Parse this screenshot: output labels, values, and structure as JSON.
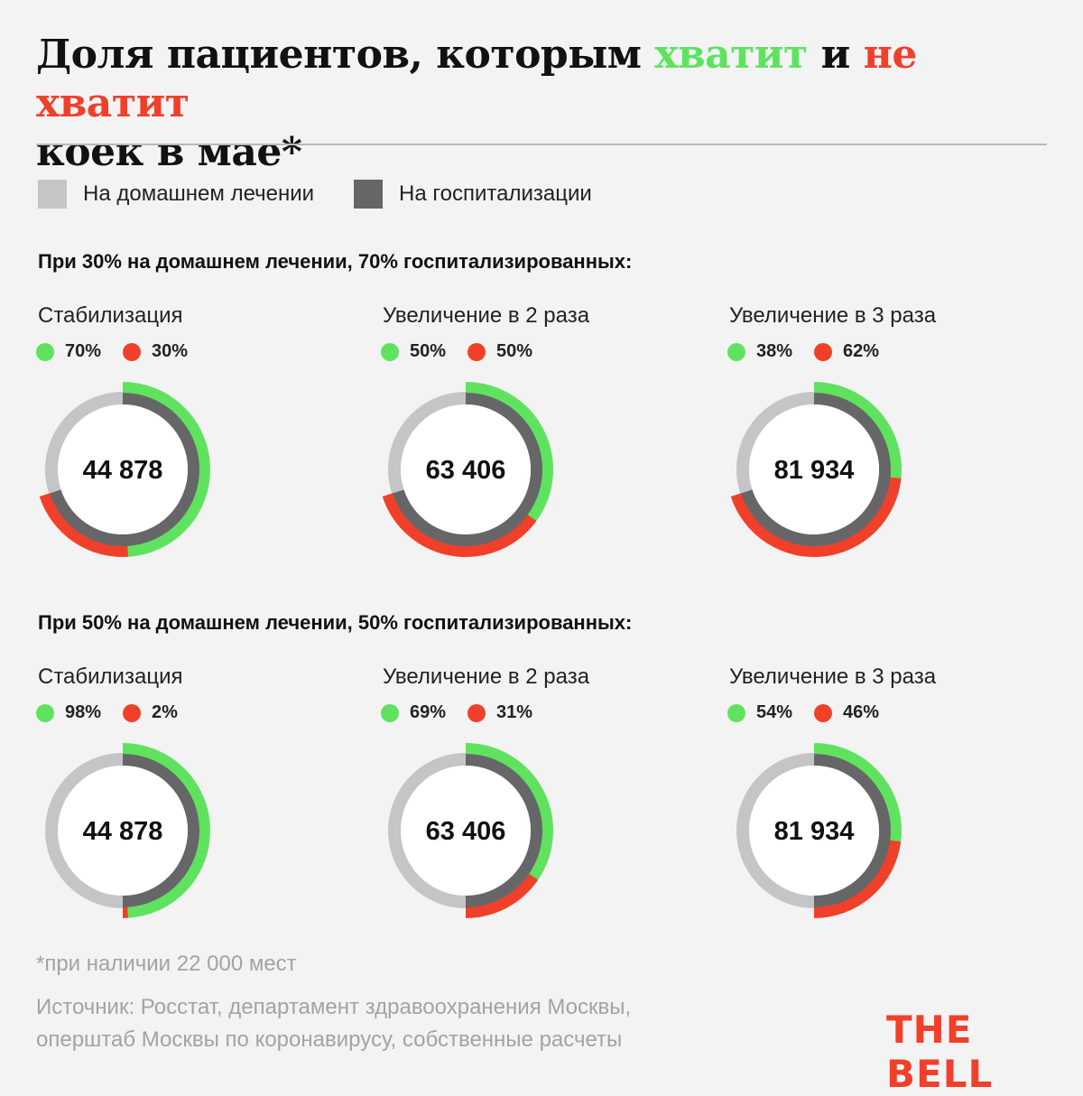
{
  "title": {
    "part1": "Доля пациентов, которым ",
    "green": "хватит",
    "mid": " и ",
    "red": "не хватит",
    "part2": "коек в мае*"
  },
  "legend": [
    {
      "label": "На домашнем лечении",
      "color": "#c5c5c7"
    },
    {
      "label": "На госпитализации",
      "color": "#666668"
    }
  ],
  "colors": {
    "enough": "#5fe35f",
    "not_enough": "#f0402a",
    "home": "#c5c5c7",
    "hospital": "#666668"
  },
  "chart_data": [
    {
      "type": "donut",
      "section": "При 30% на домашнем лечении, 70% госпитализированных:",
      "charts": [
        {
          "title": "Стабилизация",
          "total": "44 878",
          "home_share": 30,
          "hospital_share": 70,
          "enough": 70,
          "not_enough": 30,
          "enough_label": "70%",
          "not_enough_label": "30%"
        },
        {
          "title": "Увеличение в 2 раза",
          "total": "63 406",
          "home_share": 30,
          "hospital_share": 70,
          "enough": 50,
          "not_enough": 50,
          "enough_label": "50%",
          "not_enough_label": "50%"
        },
        {
          "title": "Увеличение в 3 раза",
          "total": "81 934",
          "home_share": 30,
          "hospital_share": 70,
          "enough": 38,
          "not_enough": 62,
          "enough_label": "38%",
          "not_enough_label": "62%"
        }
      ]
    },
    {
      "type": "donut",
      "section": "При 50% на домашнем лечении, 50% госпитализированных:",
      "charts": [
        {
          "title": "Стабилизация",
          "total": "44 878",
          "home_share": 50,
          "hospital_share": 50,
          "enough": 98,
          "not_enough": 2,
          "enough_label": "98%",
          "not_enough_label": "2%"
        },
        {
          "title": "Увеличение в 2 раза",
          "total": "63 406",
          "home_share": 50,
          "hospital_share": 50,
          "enough": 69,
          "not_enough": 31,
          "enough_label": "69%",
          "not_enough_label": "31%"
        },
        {
          "title": "Увеличение в 3 раза",
          "total": "81 934",
          "home_share": 50,
          "hospital_share": 50,
          "enough": 54,
          "not_enough": 46,
          "enough_label": "54%",
          "not_enough_label": "46%"
        }
      ]
    }
  ],
  "footnote": "*при наличии 22 000 мест",
  "source_line1": "Источник: Росстат, департамент здравоохранения Москвы,",
  "source_line2": "оперштаб Москвы по коронавирусу, собственные расчеты",
  "logo": "THE BELL"
}
